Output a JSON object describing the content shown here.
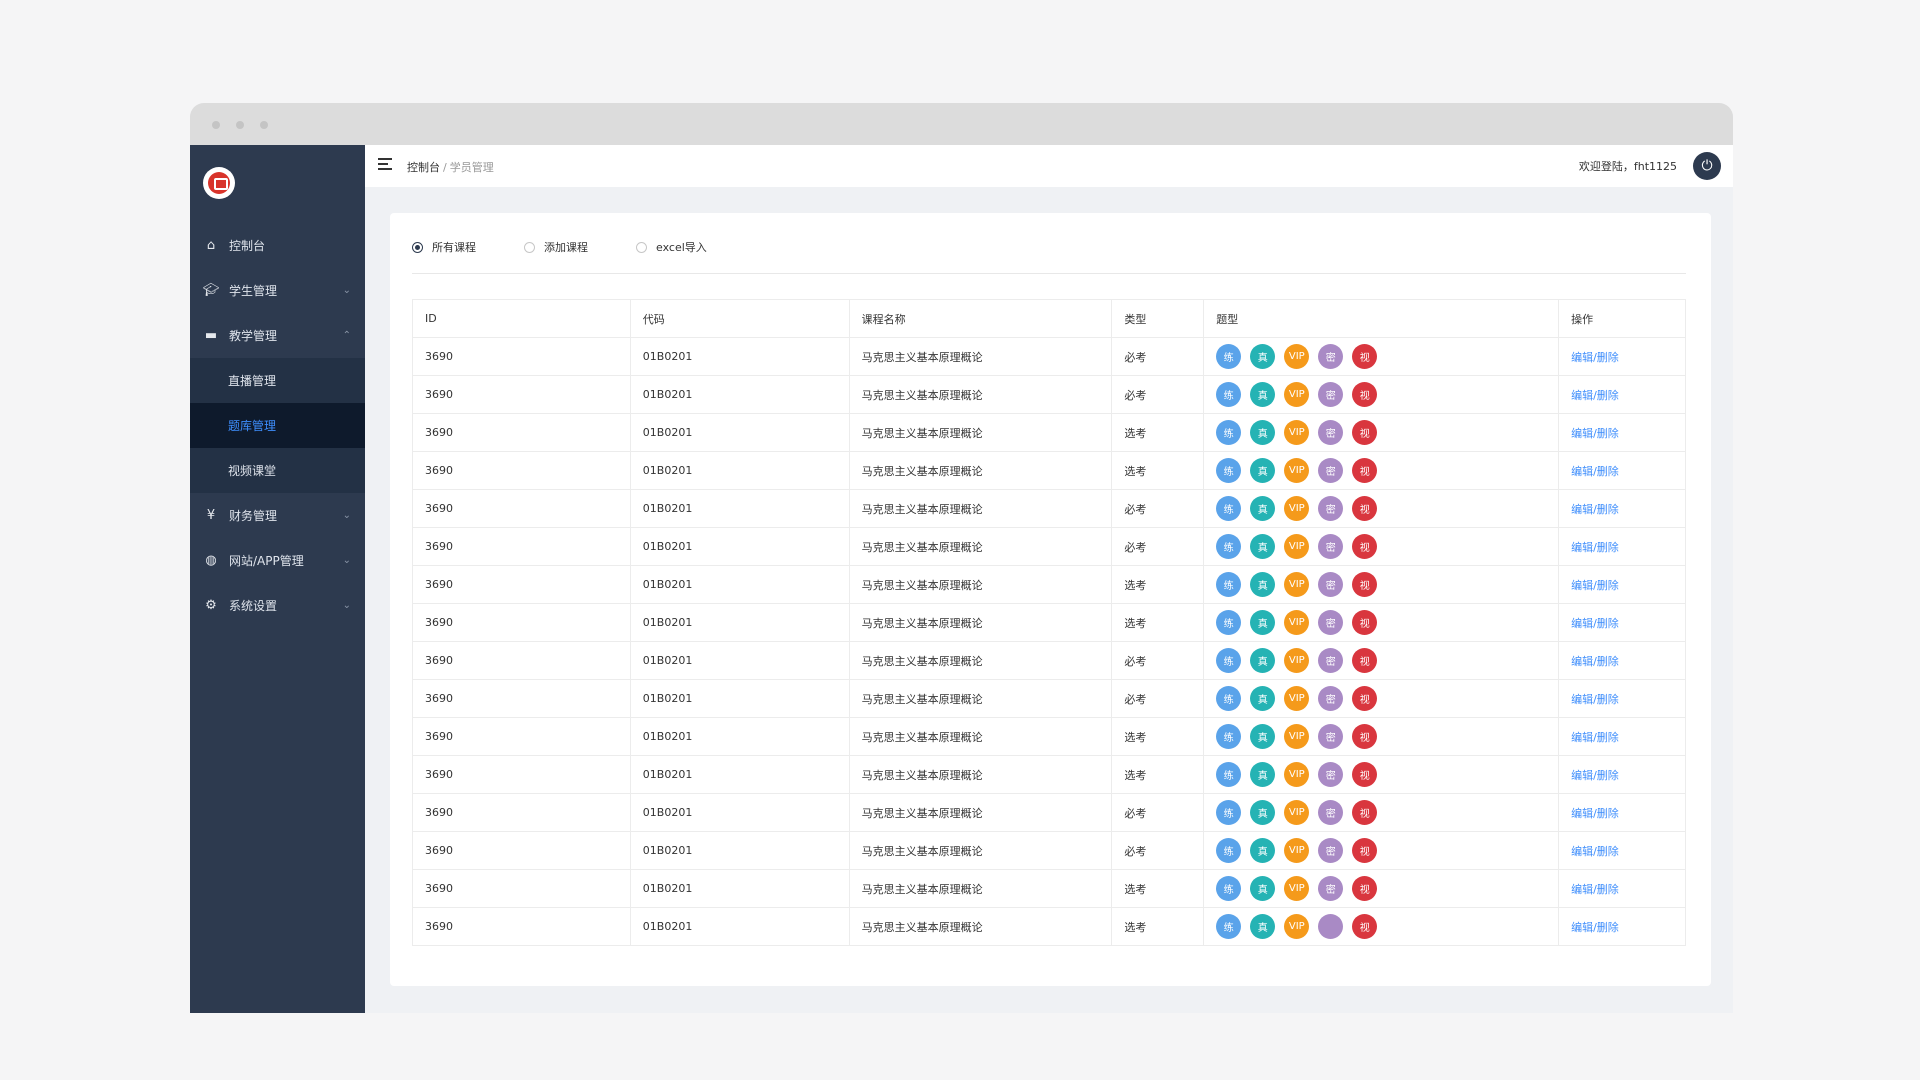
{
  "app": {
    "breadcrumb": {
      "root": "控制台",
      "separator": "/",
      "current": "学员管理"
    },
    "welcome": "欢迎登陆，fht1125"
  },
  "sidebar": {
    "items": [
      {
        "label": "控制台",
        "icon": "home-icon"
      },
      {
        "label": "学生管理",
        "icon": "graduation-cap-icon"
      },
      {
        "label": "教学管理",
        "icon": "book-icon"
      },
      {
        "label": "财务管理",
        "icon": "yen-icon"
      },
      {
        "label": "网站/APP管理",
        "icon": "globe-icon"
      },
      {
        "label": "系统设置",
        "icon": "gear-icon"
      }
    ],
    "sub_items": [
      {
        "label": "直播管理"
      },
      {
        "label": "题库管理"
      },
      {
        "label": "视频课堂"
      }
    ]
  },
  "tabs": [
    {
      "label": "所有课程",
      "selected": true
    },
    {
      "label": "添加课程",
      "selected": false
    },
    {
      "label": "excel导入",
      "selected": false
    }
  ],
  "table": {
    "headers": [
      "ID",
      "代码",
      "课程名称",
      "类型",
      "题型",
      "操作"
    ],
    "tag_labels": [
      "练",
      "真",
      "VIP",
      "密",
      "视"
    ],
    "tag_colors": [
      "#5aa3ea",
      "#25b3b4",
      "#f59a1b",
      "#a98ac5",
      "#d9363e"
    ],
    "op_label": "编辑/删除",
    "rows": [
      {
        "id": "3690",
        "code": "01B0201",
        "name": "马克思主义基本原理概论",
        "type": "必考"
      },
      {
        "id": "3690",
        "code": "01B0201",
        "name": "马克思主义基本原理概论",
        "type": "必考"
      },
      {
        "id": "3690",
        "code": "01B0201",
        "name": "马克思主义基本原理概论",
        "type": "选考"
      },
      {
        "id": "3690",
        "code": "01B0201",
        "name": "马克思主义基本原理概论",
        "type": "选考"
      },
      {
        "id": "3690",
        "code": "01B0201",
        "name": "马克思主义基本原理概论",
        "type": "必考"
      },
      {
        "id": "3690",
        "code": "01B0201",
        "name": "马克思主义基本原理概论",
        "type": "必考"
      },
      {
        "id": "3690",
        "code": "01B0201",
        "name": "马克思主义基本原理概论",
        "type": "选考"
      },
      {
        "id": "3690",
        "code": "01B0201",
        "name": "马克思主义基本原理概论",
        "type": "选考"
      },
      {
        "id": "3690",
        "code": "01B0201",
        "name": "马克思主义基本原理概论",
        "type": "必考"
      },
      {
        "id": "3690",
        "code": "01B0201",
        "name": "马克思主义基本原理概论",
        "type": "必考"
      },
      {
        "id": "3690",
        "code": "01B0201",
        "name": "马克思主义基本原理概论",
        "type": "选考"
      },
      {
        "id": "3690",
        "code": "01B0201",
        "name": "马克思主义基本原理概论",
        "type": "选考"
      },
      {
        "id": "3690",
        "code": "01B0201",
        "name": "马克思主义基本原理概论",
        "type": "必考"
      },
      {
        "id": "3690",
        "code": "01B0201",
        "name": "马克思主义基本原理概论",
        "type": "必考"
      },
      {
        "id": "3690",
        "code": "01B0201",
        "name": "马克思主义基本原理概论",
        "type": "选考"
      },
      {
        "id": "3690",
        "code": "01B0201",
        "name": "马克思主义基本原理概论",
        "type": "选考",
        "mi_hidden": true
      }
    ]
  }
}
